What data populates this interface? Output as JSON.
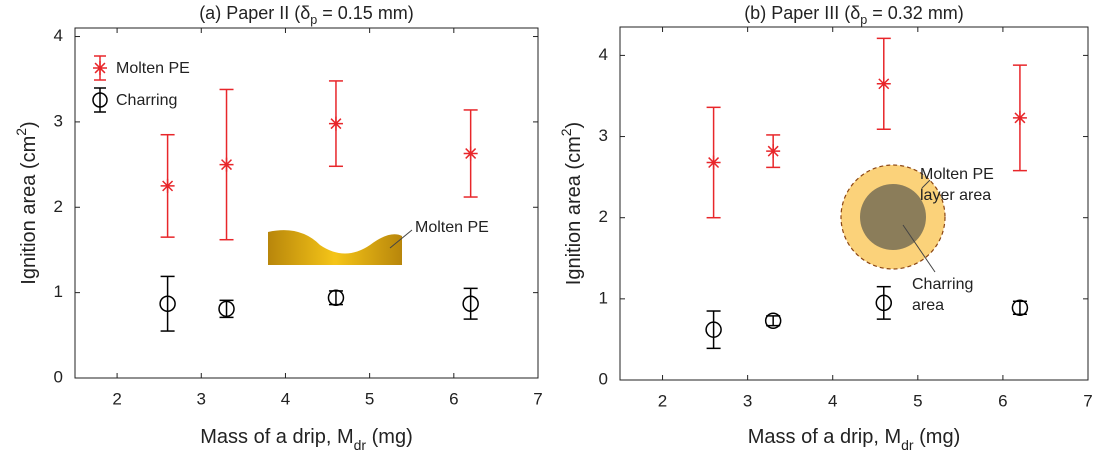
{
  "chart_data": [
    {
      "type": "scatter",
      "title": {
        "text": "(a) Paper II (δ",
        "sub": "p",
        "tail": " = 0.15 mm)"
      },
      "xlabel": {
        "text": "Mass of a drip, M",
        "sub": "dr",
        "tail": " (mg)"
      },
      "ylabel": {
        "text": "Ignition area (cm",
        "sup": "2",
        "tail": ")"
      },
      "x": [
        2.6,
        3.3,
        4.6,
        6.2
      ],
      "series": [
        {
          "name": "Molten PE",
          "color": "#e8262a",
          "marker": "asterisk",
          "values": [
            2.25,
            2.5,
            2.98,
            2.63
          ],
          "errors": [
            0.6,
            0.88,
            0.5,
            0.51
          ]
        },
        {
          "name": "Charring",
          "color": "#000000",
          "marker": "circle",
          "values": [
            0.87,
            0.81,
            0.94,
            0.87
          ],
          "errors": [
            0.32,
            0.1,
            0.08,
            0.18
          ]
        }
      ],
      "xlim": [
        1.5,
        7
      ],
      "xticks": [
        2,
        3,
        4,
        5,
        6,
        7
      ],
      "ylim": [
        0,
        4.1
      ],
      "yticks": [
        0,
        1,
        2,
        3,
        4
      ],
      "legend": "upper left",
      "annotations": [
        {
          "text": [
            "Molten PE"
          ],
          "color": "#c00000"
        }
      ]
    },
    {
      "type": "scatter",
      "title": {
        "text": "(b) Paper III (δ",
        "sub": "p",
        "tail": " = 0.32 mm)"
      },
      "xlabel": {
        "text": "Mass of a drip, M",
        "sub": "dr",
        "tail": " (mg)"
      },
      "ylabel": {
        "text": "Ignition area (cm",
        "sup": "2",
        "tail": ")"
      },
      "x": [
        2.6,
        3.3,
        4.6,
        6.2
      ],
      "series": [
        {
          "color": "#e8262a",
          "marker": "asterisk",
          "values": [
            2.68,
            2.82,
            3.65,
            3.23
          ],
          "errors": [
            0.68,
            0.2,
            0.56,
            0.65
          ]
        },
        {
          "color": "#000000",
          "marker": "circle",
          "values": [
            0.62,
            0.73,
            0.95,
            0.89
          ],
          "errors": [
            0.23,
            0.06,
            0.2,
            0.08
          ]
        }
      ],
      "xlim": [
        1.5,
        7
      ],
      "xticks": [
        2,
        3,
        4,
        5,
        6,
        7
      ],
      "ylim": [
        0,
        4.35
      ],
      "yticks": [
        0,
        1,
        2,
        3,
        4
      ],
      "annotations": [
        {
          "text": [
            "Molten PE",
            "layer area"
          ],
          "color": "#c00000"
        },
        {
          "text": [
            "Charring",
            "area"
          ],
          "color": "#000000"
        }
      ]
    }
  ]
}
